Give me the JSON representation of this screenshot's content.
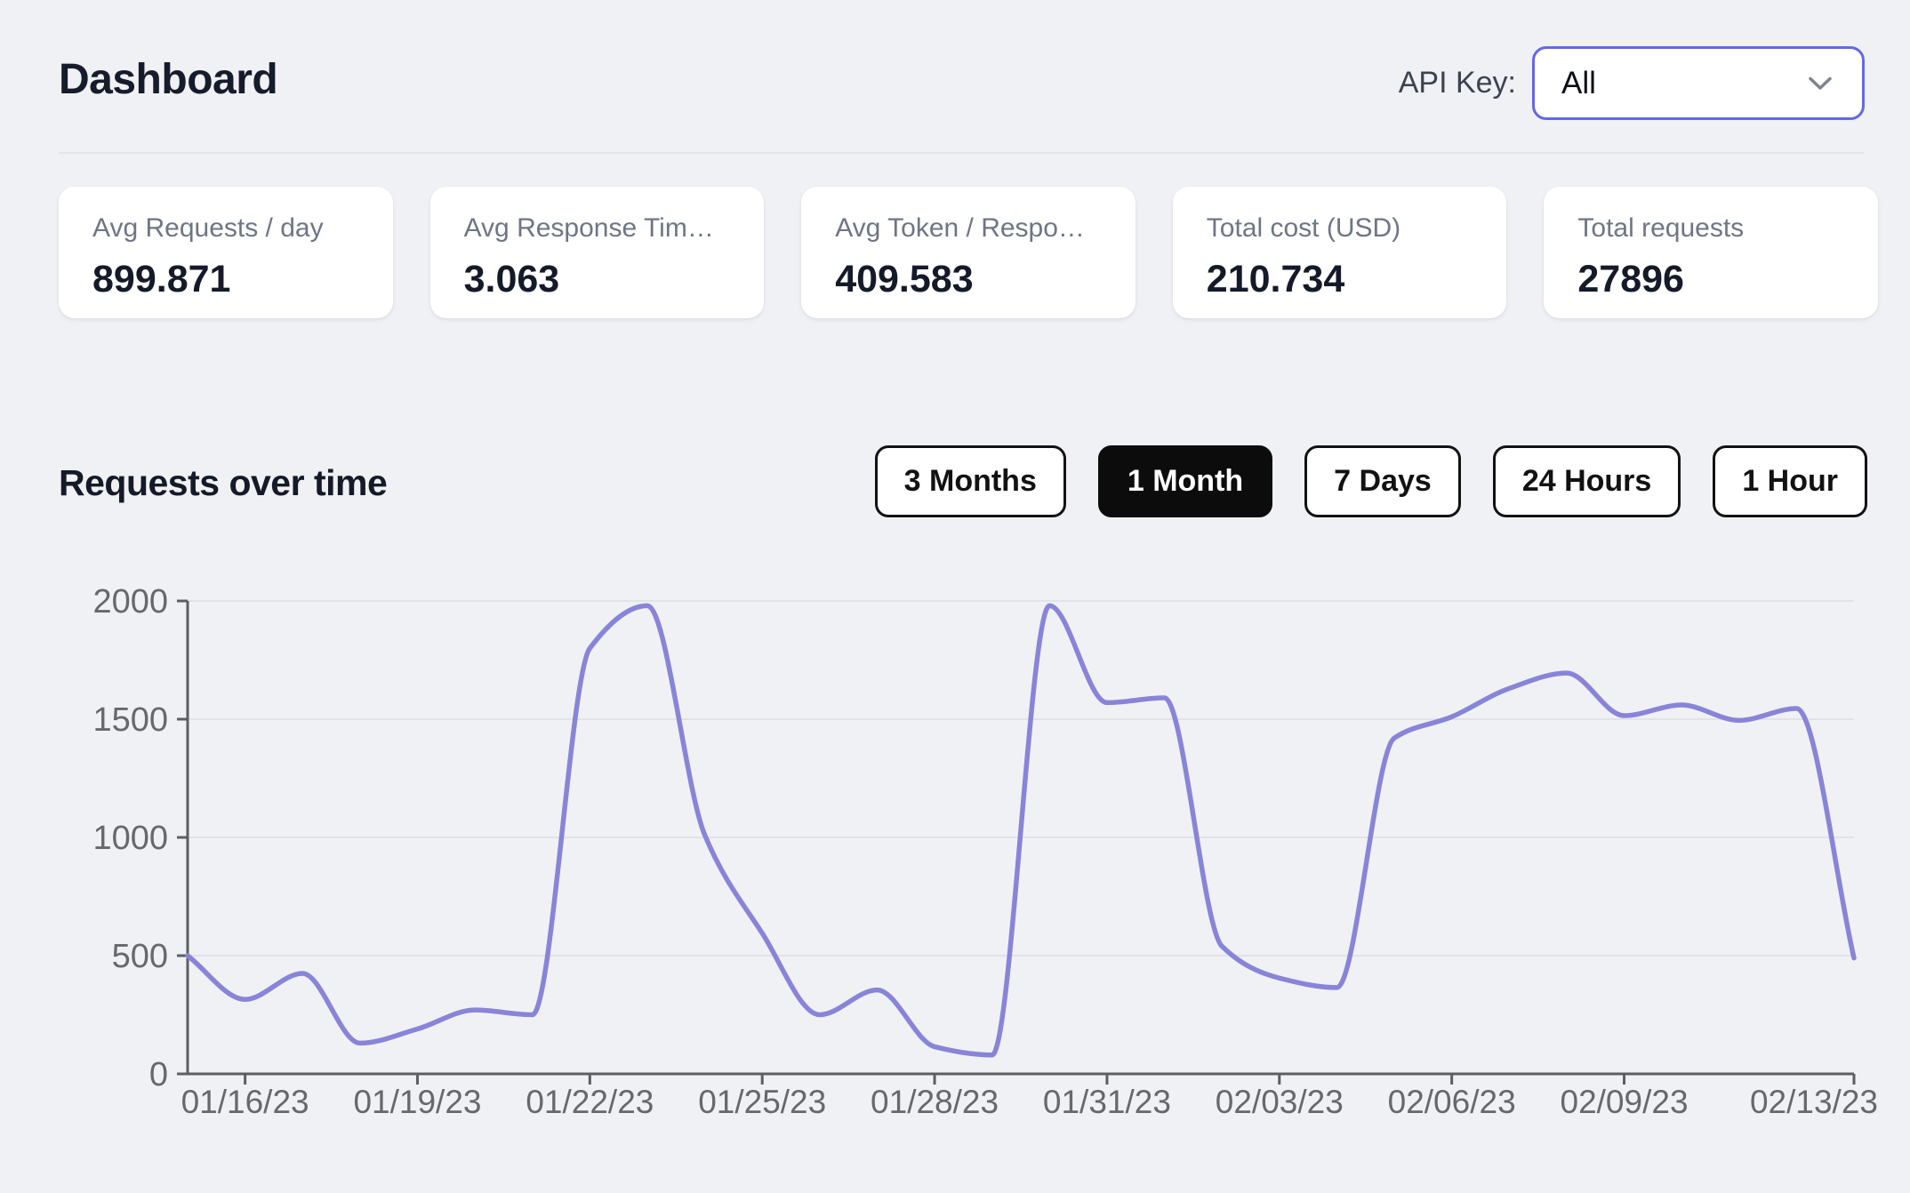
{
  "header": {
    "title": "Dashboard",
    "api_key_label": "API Key:",
    "api_key_value": "All",
    "api_key_icon": "chevron-down"
  },
  "stats": {
    "cards": [
      {
        "label": "Avg Requests / day",
        "value": "899.871"
      },
      {
        "label": "Avg Response Tim…",
        "value": "3.063"
      },
      {
        "label": "Avg Token / Respo…",
        "value": "409.583"
      },
      {
        "label": "Total cost (USD)",
        "value": "210.734"
      },
      {
        "label": "Total requests",
        "value": "27896"
      }
    ]
  },
  "chart_section": {
    "title": "Requests over time",
    "ranges": [
      "3 Months",
      "1 Month",
      "7 Days",
      "24 Hours",
      "1 Hour"
    ],
    "active_range": "1 Month"
  },
  "colors": {
    "accent_indigo": "#6467e4",
    "button_black": "#0c0c0c",
    "line_purple": "#8884d8",
    "axis_gray": "#5b5e63",
    "grid_gray": "#e1e3e7",
    "tick_text_gray": "#65686d",
    "page_bg": "#f0f1f4"
  },
  "chart_data": {
    "type": "line",
    "title": "Requests over time",
    "xlabel": "",
    "ylabel": "",
    "x": [
      "01/15/23",
      "01/16/23",
      "01/17/23",
      "01/18/23",
      "01/19/23",
      "01/20/23",
      "01/21/23",
      "01/22/23",
      "01/23/23",
      "01/24/23",
      "01/25/23",
      "01/26/23",
      "01/27/23",
      "01/28/23",
      "01/29/23",
      "01/30/23",
      "01/31/23",
      "02/01/23",
      "02/02/23",
      "02/03/23",
      "02/04/23",
      "02/05/23",
      "02/06/23",
      "02/07/23",
      "02/08/23",
      "02/09/23",
      "02/10/23",
      "02/11/23",
      "02/12/23",
      "02/13/23"
    ],
    "series": [
      {
        "name": "Requests",
        "color": "#8884d8",
        "values": [
          500,
          315,
          425,
          130,
          190,
          270,
          250,
          1800,
          1980,
          1010,
          595,
          250,
          355,
          115,
          80,
          1980,
          1570,
          1590,
          540,
          405,
          365,
          1420,
          1510,
          1630,
          1695,
          1515,
          1560,
          1495,
          1545,
          490
        ]
      }
    ],
    "ylim": [
      0,
      2000
    ],
    "y_ticks": [
      0,
      500,
      1000,
      1500,
      2000
    ],
    "x_tick_indices": [
      1,
      4,
      7,
      10,
      13,
      16,
      19,
      22,
      25,
      29
    ],
    "x_tick_labels": [
      "01/16/23",
      "01/19/23",
      "01/22/23",
      "01/25/23",
      "01/28/23",
      "01/31/23",
      "02/03/23",
      "02/06/23",
      "02/09/23",
      "02/13/23"
    ],
    "grid": "horizontal",
    "legend": "none",
    "curve": "monotone"
  }
}
